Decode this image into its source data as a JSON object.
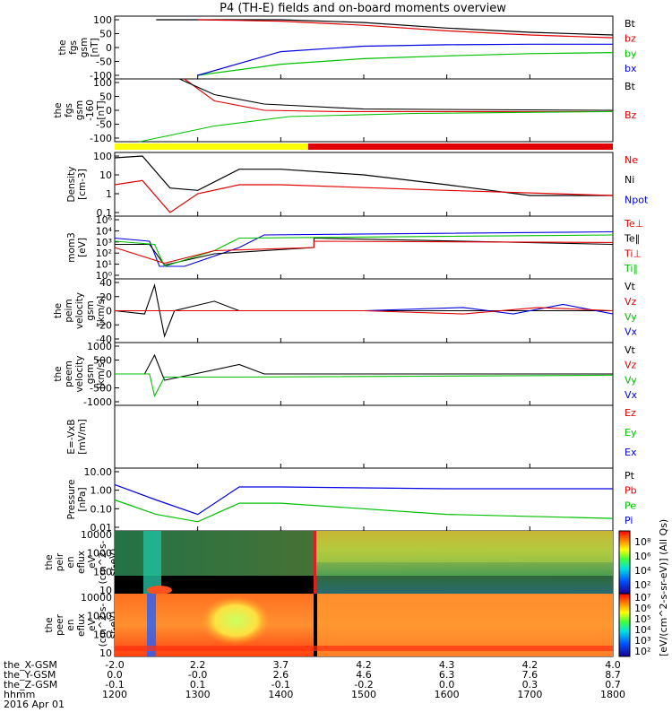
{
  "title": "P4 (TH-E) fields and on-board moments overview",
  "panels": [
    {
      "id": "fgs",
      "ylabel": [
        "the",
        "fgs",
        "gsm",
        "[nT]"
      ],
      "ticks": [
        "100",
        "50",
        "0",
        "-50",
        "-100"
      ],
      "legend": [
        {
          "t": "Bt",
          "c": "#000000"
        },
        {
          "t": "bz",
          "c": "#e00000"
        },
        {
          "t": "by",
          "c": "#00c000"
        },
        {
          "t": "bx",
          "c": "#0000e0"
        }
      ]
    },
    {
      "id": "fgs2",
      "ylabel": [
        "the",
        "fgs",
        "gsm",
        "-160",
        "[nT]"
      ],
      "ticks": [
        "100",
        "50",
        "0",
        "-50",
        "-100"
      ],
      "legend": [
        {
          "t": "Bt",
          "c": "#000000"
        },
        {
          "t": "Bz",
          "c": "#e00000"
        }
      ]
    },
    {
      "id": "density",
      "ylabel": [
        "Density",
        "[cm-3]"
      ],
      "ticks": [
        "100",
        "10",
        "1",
        "0.1"
      ],
      "legend": [
        {
          "t": "Ne",
          "c": "#e00000"
        },
        {
          "t": "Ni",
          "c": "#000000"
        },
        {
          "t": "Npot",
          "c": "#0000e0"
        }
      ]
    },
    {
      "id": "temp",
      "ylabel": [
        "mom3",
        "[eV]"
      ],
      "ticks": [
        "10⁶",
        "10⁴",
        "10³",
        "10²",
        "10¹",
        "10⁰"
      ],
      "legend": [
        {
          "t": "Te⊥",
          "c": "#e00000"
        },
        {
          "t": "Te‖",
          "c": "#000000"
        },
        {
          "t": "Ti⊥",
          "c": "#e00000"
        },
        {
          "t": "Ti‖",
          "c": "#00c000"
        }
      ]
    },
    {
      "id": "peim",
      "ylabel": [
        "the",
        "peim",
        "velocity",
        "gsm",
        "[km/s]"
      ],
      "ticks": [
        "40",
        "20",
        "0",
        "-20",
        "-40"
      ],
      "legend": [
        {
          "t": "Vt",
          "c": "#000000"
        },
        {
          "t": "Vz",
          "c": "#e00000"
        },
        {
          "t": "Vy",
          "c": "#00c000"
        },
        {
          "t": "Vx",
          "c": "#0000e0"
        }
      ]
    },
    {
      "id": "peem",
      "ylabel": [
        "the",
        "peem",
        "velocity",
        "gsm",
        "[km/s]"
      ],
      "ticks": [
        "1000",
        "500",
        "0",
        "-500",
        "-1000"
      ],
      "legend": [
        {
          "t": "Vt",
          "c": "#000000"
        },
        {
          "t": "Vz",
          "c": "#e00000"
        },
        {
          "t": "Vy",
          "c": "#00c000"
        },
        {
          "t": "Vx",
          "c": "#0000e0"
        }
      ]
    },
    {
      "id": "efield",
      "ylabel": [
        "E=-VxB",
        "[mV/m]"
      ],
      "ticks": [],
      "legend": [
        {
          "t": "Ez",
          "c": "#e00000"
        },
        {
          "t": "Ey",
          "c": "#00c000"
        },
        {
          "t": "Ex",
          "c": "#0000e0"
        }
      ]
    },
    {
      "id": "pressure",
      "ylabel": [
        "Pressure",
        "[nPa]"
      ],
      "ticks": [
        "10.00",
        "1.00",
        "0.10",
        "0.01"
      ],
      "legend": [
        {
          "t": "Pt",
          "c": "#000000"
        },
        {
          "t": "Pb",
          "c": "#e00000"
        },
        {
          "t": "Pe",
          "c": "#00c000"
        },
        {
          "t": "Pi",
          "c": "#0000e0"
        }
      ]
    },
    {
      "id": "peir",
      "ylabel": [
        "the",
        "peir",
        "en",
        "eflux",
        "eV",
        "(cm^2-s-",
        "sr-eV)"
      ],
      "ticks": [
        "10000",
        "1000",
        "100",
        "10"
      ],
      "legend": []
    },
    {
      "id": "peer",
      "ylabel": [
        "the",
        "peer",
        "en",
        "eflux",
        "eV",
        "(cm^2-s-",
        "sr-eV)"
      ],
      "ticks": [
        "10000",
        "1000",
        "100",
        "10"
      ],
      "legend": []
    }
  ],
  "colorbar": {
    "top_ticks": [
      "10⁸",
      "10⁶",
      "10⁴",
      "10²"
    ],
    "bottom_ticks": [
      "10⁷",
      "10⁶",
      "10⁵",
      "10⁴",
      "10³",
      "10²"
    ],
    "label": "[eV/(cm^2-s-sr-eV)] (All Qs)"
  },
  "xaxis": {
    "row_labels": [
      "the_X-GSM",
      "the_Y-GSM",
      "the_Z-GSM",
      "hhmm",
      "2016 Apr 01"
    ],
    "columns": [
      {
        "x": "-2.0",
        "y": "0.0",
        "z": "-0.1",
        "t": "1200"
      },
      {
        "x": "2.2",
        "y": "-0.0",
        "z": "0.1",
        "t": "1300"
      },
      {
        "x": "3.7",
        "y": "2.6",
        "z": "-0.1",
        "t": "1400"
      },
      {
        "x": "4.2",
        "y": "4.6",
        "z": "-0.2",
        "t": "1500"
      },
      {
        "x": "4.3",
        "y": "6.3",
        "z": "0.0",
        "t": "1600"
      },
      {
        "x": "4.2",
        "y": "7.6",
        "z": "0.3",
        "t": "1700"
      },
      {
        "x": "4.0",
        "y": "8.7",
        "z": "0.7",
        "t": "1800"
      }
    ]
  },
  "colors": {
    "black": "#000000",
    "red": "#e00000",
    "green": "#00c000",
    "blue": "#0000e0",
    "yellow": "#ffff00"
  },
  "chart_data": {
    "type": "line",
    "title": "P4 (TH-E) fields and on-board moments overview",
    "x_unit": "hhmm",
    "x_range": [
      "1200",
      "1800"
    ],
    "series": [
      {
        "panel": "fgs",
        "name": "Bt",
        "x": [
          "1230",
          "1300",
          "1400",
          "1500",
          "1600",
          "1700",
          "1800"
        ],
        "values": [
          100,
          100,
          100,
          90,
          70,
          55,
          45
        ]
      },
      {
        "panel": "fgs",
        "name": "bz",
        "x": [
          "1300",
          "1400",
          "1500",
          "1600",
          "1700",
          "1800"
        ],
        "values": [
          100,
          95,
          80,
          60,
          45,
          35
        ]
      },
      {
        "panel": "fgs",
        "name": "by",
        "x": [
          "1300",
          "1400",
          "1500",
          "1600",
          "1700",
          "1800"
        ],
        "values": [
          -100,
          -60,
          -40,
          -30,
          -22,
          -18
        ]
      },
      {
        "panel": "fgs",
        "name": "bx",
        "x": [
          "1300",
          "1400",
          "1500",
          "1600",
          "1700",
          "1800"
        ],
        "values": [
          -100,
          -15,
          5,
          10,
          12,
          12
        ]
      },
      {
        "panel": "density",
        "name": "Ni",
        "x": [
          "1200",
          "1220",
          "1240",
          "1300",
          "1330",
          "1400",
          "1500",
          "1600",
          "1700",
          "1800"
        ],
        "values": [
          80,
          100,
          2,
          1.5,
          20,
          20,
          10,
          3,
          0.8,
          0.8
        ]
      },
      {
        "panel": "density",
        "name": "Ne",
        "x": [
          "1200",
          "1220",
          "1240",
          "1300",
          "1330",
          "1400",
          "1600",
          "1800"
        ],
        "values": [
          3,
          5,
          0.1,
          1,
          3,
          3,
          1.5,
          0.8
        ]
      },
      {
        "panel": "pressure",
        "name": "Pi",
        "x": [
          "1200",
          "1230",
          "1300",
          "1330",
          "1400",
          "1600",
          "1800"
        ],
        "values": [
          2,
          0.3,
          0.05,
          1.5,
          1.5,
          1.2,
          1.2
        ]
      },
      {
        "panel": "pressure",
        "name": "Pe",
        "x": [
          "1200",
          "1230",
          "1300",
          "1330",
          "1400",
          "1600",
          "1800"
        ],
        "values": [
          0.3,
          0.05,
          0.02,
          0.2,
          0.2,
          0.05,
          0.03
        ]
      }
    ]
  }
}
